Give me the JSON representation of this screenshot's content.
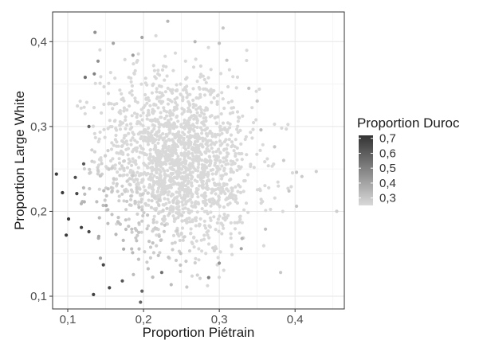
{
  "chart_data": {
    "type": "scatter",
    "xlabel": "Proportion Piétrain",
    "ylabel": "Proportion Large White",
    "xlim": [
      0.08,
      0.465
    ],
    "ylim": [
      0.085,
      0.435
    ],
    "x_ticks": [
      0.1,
      0.2,
      0.3,
      0.4
    ],
    "x_tick_labels": [
      "0,1",
      "0,2",
      "0,3",
      "0,4"
    ],
    "y_ticks": [
      0.1,
      0.2,
      0.3,
      0.4
    ],
    "y_tick_labels": [
      "0,1",
      "0,2",
      "0,3",
      "0,4"
    ],
    "grid": true,
    "color": {
      "name": "Proportion Duroc",
      "range": [
        0.25,
        0.72
      ],
      "low_color": "#d9d9d9",
      "high_color": "#333333",
      "ticks": [
        0.3,
        0.4,
        0.5,
        0.6,
        0.7
      ],
      "tick_labels": [
        "0,3",
        "0,4",
        "0,5",
        "0,6",
        "0,7"
      ]
    },
    "legend_position": "right",
    "points": [
      [
        0.136,
        0.411,
        0.45
      ],
      [
        0.198,
        0.405,
        0.4
      ],
      [
        0.232,
        0.424,
        0.35
      ],
      [
        0.305,
        0.416,
        0.3
      ],
      [
        0.3,
        0.398,
        0.32
      ],
      [
        0.16,
        0.398,
        0.4
      ],
      [
        0.186,
        0.384,
        0.42
      ],
      [
        0.268,
        0.4,
        0.35
      ],
      [
        0.14,
        0.377,
        0.46
      ],
      [
        0.123,
        0.358,
        0.55
      ],
      [
        0.135,
        0.362,
        0.5
      ],
      [
        0.31,
        0.378,
        0.3
      ],
      [
        0.339,
        0.345,
        0.3
      ],
      [
        0.35,
        0.33,
        0.3
      ],
      [
        0.355,
        0.296,
        0.32
      ],
      [
        0.373,
        0.276,
        0.3
      ],
      [
        0.385,
        0.26,
        0.29
      ],
      [
        0.402,
        0.246,
        0.3
      ],
      [
        0.409,
        0.241,
        0.29
      ],
      [
        0.428,
        0.247,
        0.28
      ],
      [
        0.392,
        0.224,
        0.3
      ],
      [
        0.402,
        0.206,
        0.3
      ],
      [
        0.455,
        0.2,
        0.28
      ],
      [
        0.381,
        0.128,
        0.3
      ],
      [
        0.361,
        0.179,
        0.32
      ],
      [
        0.33,
        0.168,
        0.35
      ],
      [
        0.085,
        0.244,
        0.7
      ],
      [
        0.093,
        0.222,
        0.7
      ],
      [
        0.098,
        0.172,
        0.7
      ],
      [
        0.101,
        0.191,
        0.7
      ],
      [
        0.118,
        0.181,
        0.68
      ],
      [
        0.112,
        0.221,
        0.66
      ],
      [
        0.128,
        0.176,
        0.66
      ],
      [
        0.134,
        0.102,
        0.68
      ],
      [
        0.155,
        0.11,
        0.66
      ],
      [
        0.196,
        0.093,
        0.58
      ],
      [
        0.198,
        0.106,
        0.58
      ],
      [
        0.224,
        0.128,
        0.55
      ],
      [
        0.128,
        0.3,
        0.58
      ],
      [
        0.121,
        0.256,
        0.62
      ],
      [
        0.11,
        0.24,
        0.65
      ],
      [
        0.147,
        0.137,
        0.66
      ],
      [
        0.172,
        0.118,
        0.62
      ],
      [
        0.286,
        0.122,
        0.5
      ],
      [
        0.3,
        0.139,
        0.45
      ],
      [
        0.329,
        0.156,
        0.4
      ]
    ],
    "cloud": {
      "note_free": true,
      "count": 1900,
      "x_center": 0.245,
      "y_center": 0.255,
      "x_sd": 0.05,
      "y_sd": 0.052,
      "correlation": -0.12,
      "xlim": [
        0.11,
        0.4
      ],
      "ylim": [
        0.1,
        0.41
      ]
    }
  }
}
